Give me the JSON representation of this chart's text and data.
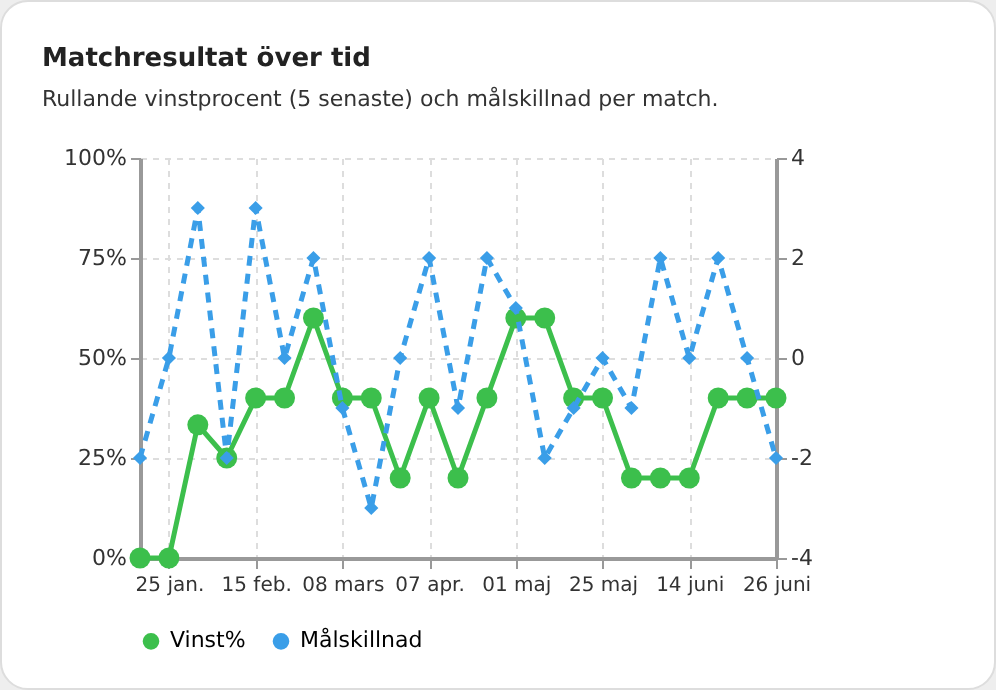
{
  "chart_data": {
    "type": "line",
    "title": "Matchresultat över tid",
    "subtitle": "Rullande vinstprocent (5 senaste) och målskillnad per match.",
    "categories": [
      null,
      "25 jan.",
      null,
      null,
      "15 feb.",
      null,
      null,
      "08 mars",
      null,
      null,
      "07 apr.",
      null,
      null,
      "01 maj",
      null,
      null,
      "25 maj",
      null,
      null,
      "14 juni",
      null,
      null,
      "26 juni"
    ],
    "series": [
      {
        "name": "Vinst%",
        "color": "#3cbf4c",
        "marker": "circle",
        "line_style": "solid",
        "values": [
          0,
          0,
          33.3,
          25,
          40,
          40,
          60,
          40,
          40,
          20,
          40,
          20,
          40,
          60,
          60,
          40,
          40,
          20,
          20,
          20,
          40,
          40,
          40
        ]
      },
      {
        "name": "Målskillnad",
        "color": "#3a9ee8",
        "marker": "diamond",
        "line_style": "dashed",
        "axis": "y2",
        "values": [
          -2,
          0,
          3,
          -2,
          3,
          0,
          2,
          -1,
          -3,
          0,
          2,
          -1,
          2,
          1,
          -2,
          -1,
          0,
          -1,
          2,
          0,
          2,
          0,
          -2
        ]
      }
    ],
    "ylim": [
      0,
      100
    ],
    "yticks": [
      {
        "value": 0,
        "label": "0%"
      },
      {
        "value": 25,
        "label": "25%"
      },
      {
        "value": 50,
        "label": "50%"
      },
      {
        "value": 75,
        "label": "75%"
      },
      {
        "value": 100,
        "label": "100%"
      }
    ],
    "y2lim": [
      -4,
      4
    ],
    "y2ticks": [
      -4,
      -2,
      0,
      2,
      4
    ],
    "grid": true,
    "legend": "bottom"
  }
}
